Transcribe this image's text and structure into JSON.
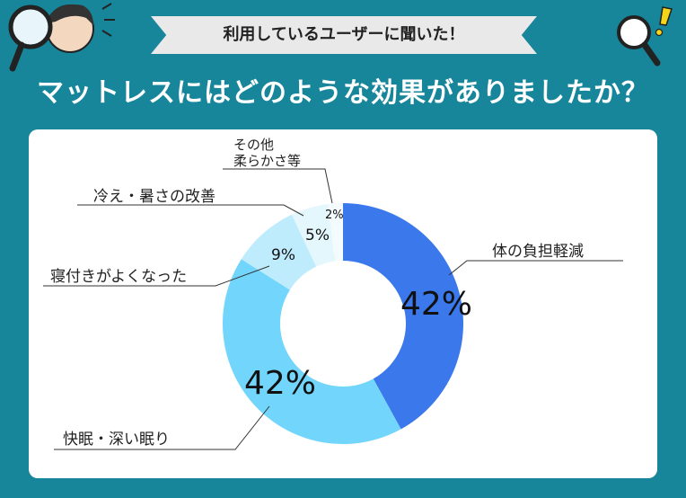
{
  "banner": {
    "text": "利用しているユーザーに聞いた！"
  },
  "title": "マットレスにはどのような効果がありましたか？",
  "chart_data": {
    "type": "pie",
    "slices": [
      {
        "label": "体の負担軽減",
        "value": 42,
        "pct_label": "42%",
        "color": "#3a78ec"
      },
      {
        "label": "快眠・深い眠り",
        "value": 42,
        "pct_label": "42%",
        "color": "#72d5fb"
      },
      {
        "label": "寝付きがよくなった",
        "value": 9,
        "pct_label": "9%",
        "color": "#bfecfc"
      },
      {
        "label": "冷え・暑さの改善",
        "value": 5,
        "pct_label": "5%",
        "color": "#e3f7fd"
      },
      {
        "label_line1": "その他",
        "label_line2": "柔らかさ等",
        "value": 2,
        "pct_label": "2%",
        "color": "#f4fbfe"
      }
    ]
  }
}
